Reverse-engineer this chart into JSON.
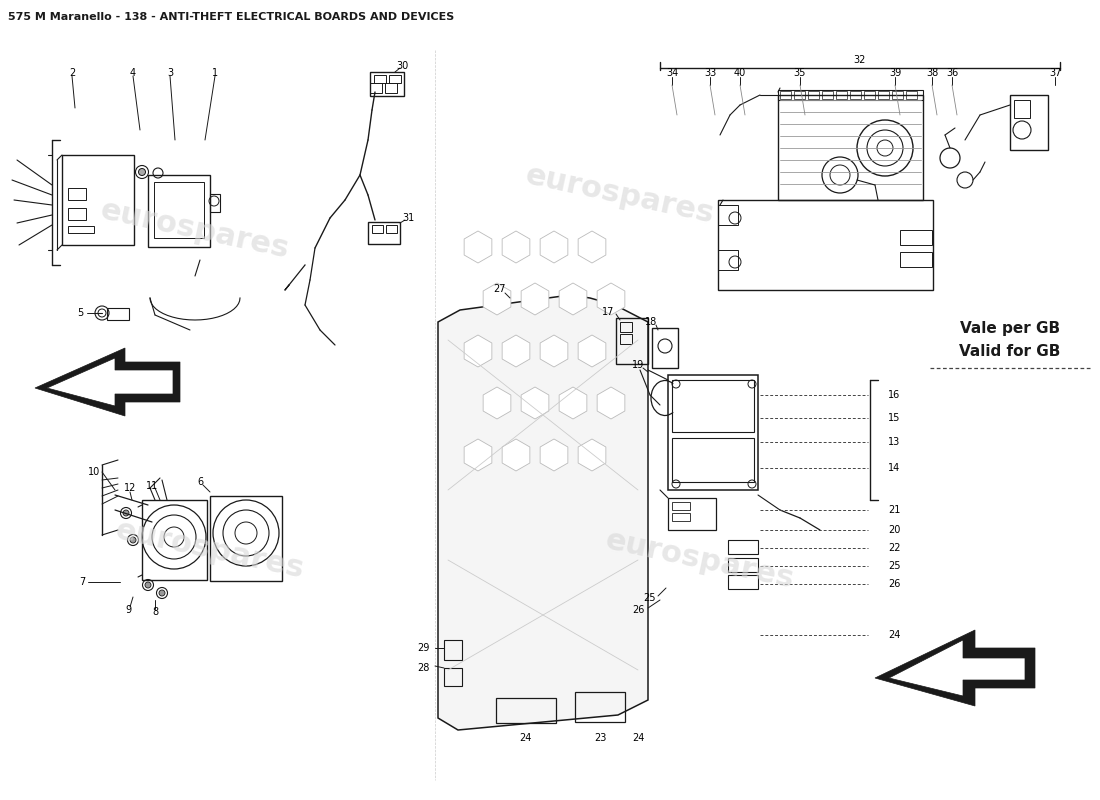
{
  "title": "575 M Maranello - 138 - ANTI-THEFT ELECTRICAL BOARDS AND DEVICES",
  "background_color": "#ffffff",
  "line_color": "#1a1a1a",
  "watermark_text": "eurospares",
  "vale_per_gb": "Vale per GB\nValid for GB"
}
